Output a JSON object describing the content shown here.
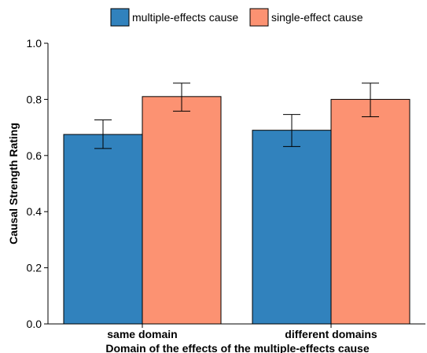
{
  "chart_data": {
    "type": "bar",
    "categories": [
      "same domain",
      "different domains"
    ],
    "series": [
      {
        "name": "multiple-effects cause",
        "color": "#3182bd",
        "values": [
          0.675,
          0.69
        ],
        "error_low": [
          0.625,
          0.632
        ],
        "error_high": [
          0.727,
          0.746
        ]
      },
      {
        "name": "single-effect cause",
        "color": "#fc9272",
        "values": [
          0.81,
          0.8
        ],
        "error_low": [
          0.758,
          0.738
        ],
        "error_high": [
          0.858,
          0.858
        ]
      }
    ],
    "xlabel": "Domain of the effects of the multiple-effects cause",
    "ylabel": "Causal Strength Rating",
    "ylim": [
      0.0,
      1.0
    ],
    "yticks": [
      "0.0",
      "0.2",
      "0.4",
      "0.6",
      "0.8",
      "1.0"
    ],
    "grid": false,
    "legend_position": "top"
  }
}
